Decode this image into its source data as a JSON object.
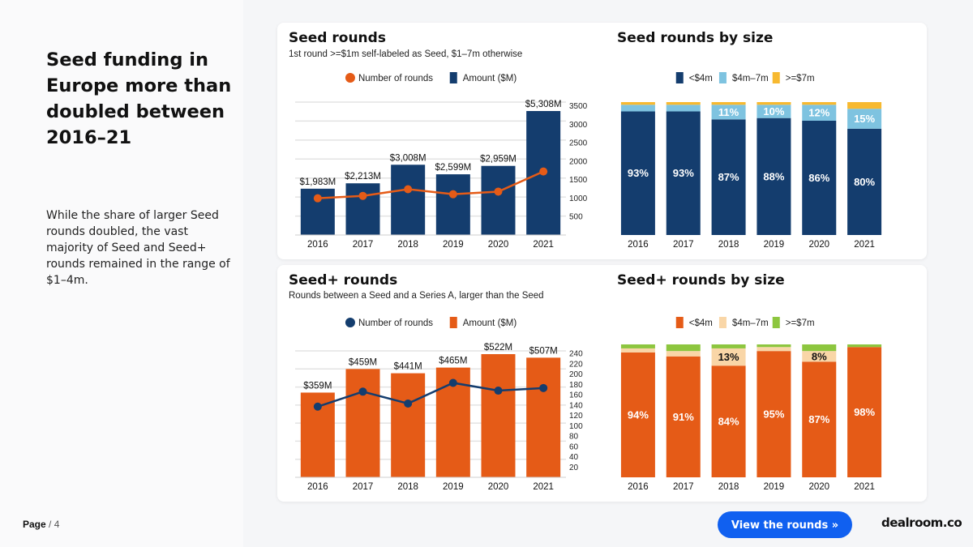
{
  "headline": "Seed funding in Europe more than doubled between 2016–21",
  "subtext": "While the share of larger Seed rounds doubled, the vast majority of Seed and Seed+ rounds remained in the range of $1–4m.",
  "footer": {
    "page_label": "Page",
    "page_number": "/ 4"
  },
  "cta_label": "View the rounds »",
  "logo_text": "dealroom.co",
  "colors": {
    "navy": "#143d6e",
    "orange": "#e55b17",
    "light_blue": "#7ec3e0",
    "yellow": "#f7b930",
    "peach": "#f9d6a7",
    "green": "#8dc63f"
  },
  "chart_data": [
    {
      "id": "seed_rounds",
      "type": "bar",
      "title": "Seed rounds",
      "subtitle": "1st round >=$1m self-labeled as Seed, $1–7m otherwise",
      "legend": [
        "Number of rounds",
        "Amount ($M)"
      ],
      "categories": [
        "2016",
        "2017",
        "2018",
        "2019",
        "2020",
        "2021"
      ],
      "series": [
        {
          "name": "Amount ($M)",
          "kind": "bar",
          "values": [
            1983,
            2213,
            3008,
            2599,
            2959,
            5308
          ],
          "labels": [
            "$1,983M",
            "$2,213M",
            "$3,008M",
            "$2,599M",
            "$2,959M",
            "$5,308M"
          ]
        },
        {
          "name": "Number of rounds",
          "kind": "line",
          "axis": "right",
          "values": [
            995,
            1060,
            1240,
            1105,
            1175,
            1720
          ]
        }
      ],
      "y2lim": [
        0,
        3600
      ],
      "y2ticks": [
        500,
        1000,
        1500,
        2000,
        2500,
        3000,
        3500
      ]
    },
    {
      "id": "seed_by_size",
      "type": "bar",
      "stacked": true,
      "title": "Seed rounds by size",
      "legend": [
        "<$4m",
        "$4m–7m",
        ">=$7m"
      ],
      "categories": [
        "2016",
        "2017",
        "2018",
        "2019",
        "2020",
        "2021"
      ],
      "series": [
        {
          "name": "<$4m",
          "values": [
            93,
            93,
            87,
            88,
            86,
            80
          ],
          "labels": [
            "93%",
            "93%",
            "87%",
            "88%",
            "86%",
            "80%"
          ]
        },
        {
          "name": "$4m–7m",
          "values": [
            5,
            5,
            11,
            10,
            12,
            15
          ],
          "labels": [
            "",
            "",
            "11%",
            "10%",
            "12%",
            "15%"
          ]
        },
        {
          "name": ">=$7m",
          "values": [
            2,
            2,
            2,
            2,
            2,
            5
          ]
        }
      ]
    },
    {
      "id": "seed_plus_rounds",
      "type": "bar",
      "title": "Seed+ rounds",
      "subtitle": "Rounds between a Seed and a Series A, larger than the Seed",
      "legend": [
        "Number of rounds",
        "Amount ($M)"
      ],
      "categories": [
        "2016",
        "2017",
        "2018",
        "2019",
        "2020",
        "2021"
      ],
      "series": [
        {
          "name": "Amount ($M)",
          "kind": "bar",
          "values": [
            359,
            459,
            441,
            465,
            522,
            507
          ],
          "labels": [
            "$359M",
            "$459M",
            "$441M",
            "$465M",
            "$522M",
            "$507M"
          ]
        },
        {
          "name": "Number of rounds",
          "kind": "line",
          "axis": "right",
          "values": [
            137,
            166,
            143,
            183,
            168,
            173
          ]
        }
      ],
      "y2lim": [
        0,
        245
      ],
      "y2ticks": [
        20,
        40,
        60,
        80,
        100,
        120,
        140,
        160,
        180,
        200,
        220,
        240
      ]
    },
    {
      "id": "seed_plus_by_size",
      "type": "bar",
      "stacked": true,
      "title": "Seed+ rounds by size",
      "legend": [
        "<$4m",
        "$4m–7m",
        ">=$7m"
      ],
      "categories": [
        "2016",
        "2017",
        "2018",
        "2019",
        "2020",
        "2021"
      ],
      "series": [
        {
          "name": "<$4m",
          "values": [
            94,
            91,
            84,
            95,
            87,
            98
          ],
          "labels": [
            "94%",
            "91%",
            "84%",
            "95%",
            "87%",
            "98%"
          ]
        },
        {
          "name": "$4m–7m",
          "values": [
            3,
            4,
            13,
            3,
            8,
            0
          ],
          "labels": [
            "",
            "",
            "13%",
            "",
            "8%",
            ""
          ]
        },
        {
          "name": ">=$7m",
          "values": [
            3,
            5,
            3,
            2,
            5,
            2
          ]
        }
      ]
    }
  ]
}
